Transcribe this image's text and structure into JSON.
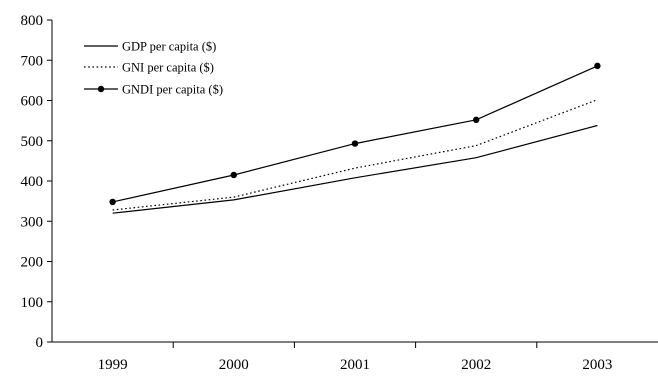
{
  "chart_data": {
    "type": "line",
    "title": "",
    "xlabel": "",
    "ylabel": "",
    "categories": [
      "1999",
      "2000",
      "2001",
      "2002",
      "2003"
    ],
    "ylim": [
      0,
      800
    ],
    "yticks": [
      0,
      100,
      200,
      300,
      400,
      500,
      600,
      700,
      800
    ],
    "grid": false,
    "legend_position": "top-left",
    "series": [
      {
        "name": "GDP per capita ($)",
        "values": [
          320,
          353,
          408,
          458,
          538
        ],
        "line_style": "solid",
        "marker": "none"
      },
      {
        "name": "GNI per capita ($)",
        "values": [
          328,
          360,
          432,
          488,
          602
        ],
        "line_style": "dotted",
        "marker": "none"
      },
      {
        "name": "GNDI per capita ($)",
        "values": [
          348,
          415,
          493,
          552,
          686
        ],
        "line_style": "solid",
        "marker": "circle"
      }
    ],
    "colors": {
      "line": "#000000",
      "background": "#ffffff"
    }
  }
}
